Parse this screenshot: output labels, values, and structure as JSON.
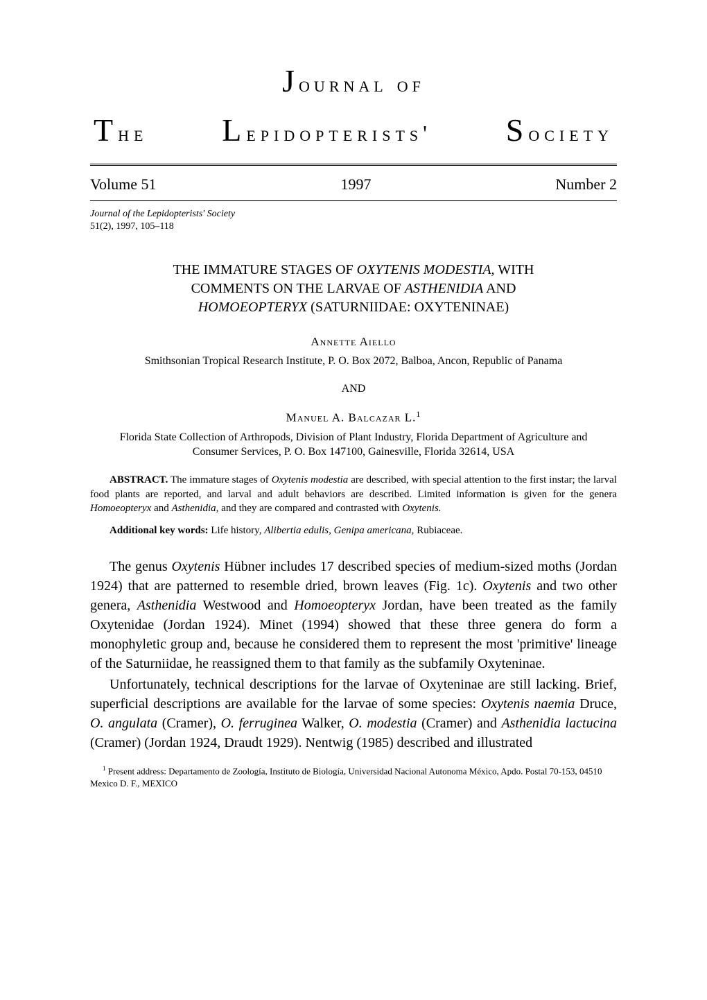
{
  "header": {
    "journal_of": "ournal of",
    "the": "he",
    "lepidopterists": "epidopterists'",
    "society": "ociety"
  },
  "volume_row": {
    "volume": "Volume 51",
    "year": "1997",
    "number": "Number 2"
  },
  "citation": {
    "line1": "Journal of the Lepidopterists' Society",
    "line2": "51(2), 1997, 105–118"
  },
  "title": {
    "line1_pre": "THE IMMATURE STAGES OF ",
    "line1_italic": "OXYTENIS MODESTIA,",
    "line1_post": " WITH",
    "line2_pre": "COMMENTS ON THE LARVAE OF ",
    "line2_italic": "ASTHENIDIA",
    "line2_post": " AND",
    "line3_italic": "HOMOEOPTERYX",
    "line3_post": " (SATURNIIDAE: OXYTENINAE)"
  },
  "author1": {
    "name": "Annette Aiello",
    "affiliation": "Smithsonian Tropical Research Institute, P. O. Box 2072, Balboa, Ancon, Republic of Panama"
  },
  "and": "AND",
  "author2": {
    "name": "Manuel A. Balcazar L.",
    "sup": "1",
    "affiliation": "Florida State Collection of Arthropods, Division of Plant Industry, Florida Department of Agriculture and Consumer Services, P. O. Box 147100, Gainesville, Florida 32614, USA"
  },
  "abstract": {
    "label": "ABSTRACT.",
    "text_pre": "The immature stages of ",
    "text_i1": "Oxytenis modestia",
    "text_mid1": " are described, with special attention to the first instar; the larval food plants are reported, and larval and adult behaviors are described. Limited information is given for the genera ",
    "text_i2": "Homoeopteryx",
    "text_mid2": " and ",
    "text_i3": "Asthenidia,",
    "text_mid3": " and they are compared and contrasted with ",
    "text_i4": "Oxytenis.",
    "text_post": ""
  },
  "keywords": {
    "label": "Additional key words:",
    "text_pre": "Life history, ",
    "text_i1": "Alibertia edulis, Genipa americana,",
    "text_post": " Rubiaceae."
  },
  "para1": {
    "t1": "The genus ",
    "i1": "Oxytenis",
    "t2": " Hübner includes 17 described species of medium-sized moths (Jordan 1924) that are patterned to resemble dried, brown leaves (Fig. 1c). ",
    "i2": "Oxytenis",
    "t3": " and two other genera, ",
    "i3": "Asthenidia",
    "t4": " Westwood and ",
    "i4": "Homoeopteryx",
    "t5": " Jordan, have been treated as the family Oxytenidae (Jordan 1924). Minet (1994) showed that these three genera do form a monophyletic group and, because he considered them to represent the most 'primitive' lineage of the Saturniidae, he reassigned them to that family as the subfamily Oxyteninae."
  },
  "para2": {
    "t1": "Unfortunately, technical descriptions for the larvae of Oxyteninae are still lacking. Brief, superficial descriptions are available for the larvae of some species: ",
    "i1": "Oxytenis naemia",
    "t2": " Druce, ",
    "i2": "O. angulata",
    "t3": " (Cramer), ",
    "i3": "O. ferruginea",
    "t4": " Walker, ",
    "i4": "O. modestia",
    "t5": " (Cramer) and ",
    "i5": "Asthenidia lactucina",
    "t6": " (Cramer) (Jordan 1924, Draudt 1929). Nentwig (1985) described and illustrated"
  },
  "footnote": {
    "sup": "1",
    "text": " Present address: Departamento de Zoología, Instituto de Biología, Universidad Nacional Autonoma México, Apdo. Postal 70-153, 04510 Mexico D. F., MEXICO"
  },
  "colors": {
    "background": "#ffffff",
    "text": "#000000"
  },
  "fonts": {
    "body_family": "Georgia, 'Times New Roman', serif",
    "title_size": 20,
    "body_size": 20,
    "abstract_size": 15,
    "citation_size": 14,
    "footnote_size": 13
  }
}
